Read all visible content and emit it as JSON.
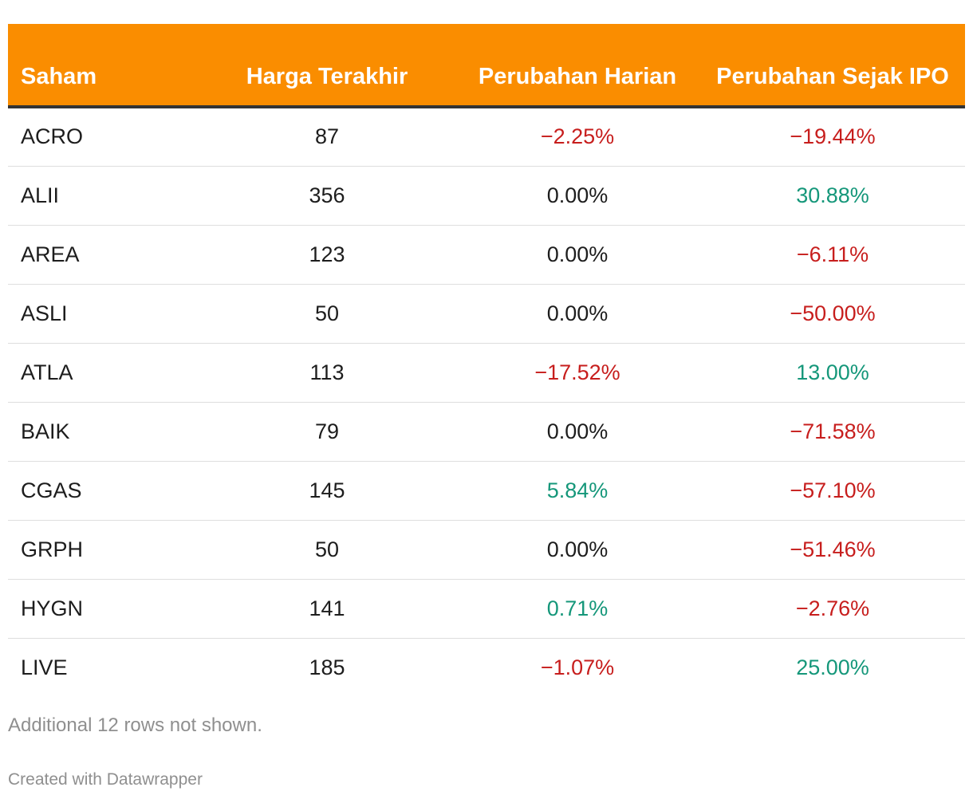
{
  "chart_data": {
    "type": "table",
    "columns": [
      "Saham",
      "Harga Terakhir",
      "Perubahan Harian",
      "Perubahan Sejak IPO"
    ],
    "rows": [
      {
        "saham": "ACRO",
        "harga": "87",
        "harian": "−2.25%",
        "ipo": "−19.44%",
        "harian_value": -2.25,
        "ipo_value": -19.44
      },
      {
        "saham": "ALII",
        "harga": "356",
        "harian": "0.00%",
        "ipo": "30.88%",
        "harian_value": 0.0,
        "ipo_value": 30.88
      },
      {
        "saham": "AREA",
        "harga": "123",
        "harian": "0.00%",
        "ipo": "−6.11%",
        "harian_value": 0.0,
        "ipo_value": -6.11
      },
      {
        "saham": "ASLI",
        "harga": "50",
        "harian": "0.00%",
        "ipo": "−50.00%",
        "harian_value": 0.0,
        "ipo_value": -50.0
      },
      {
        "saham": "ATLA",
        "harga": "113",
        "harian": "−17.52%",
        "ipo": "13.00%",
        "harian_value": -17.52,
        "ipo_value": 13.0
      },
      {
        "saham": "BAIK",
        "harga": "79",
        "harian": "0.00%",
        "ipo": "−71.58%",
        "harian_value": 0.0,
        "ipo_value": -71.58
      },
      {
        "saham": "CGAS",
        "harga": "145",
        "harian": "5.84%",
        "ipo": "−57.10%",
        "harian_value": 5.84,
        "ipo_value": -57.1
      },
      {
        "saham": "GRPH",
        "harga": "50",
        "harian": "0.00%",
        "ipo": "−51.46%",
        "harian_value": 0.0,
        "ipo_value": -51.46
      },
      {
        "saham": "HYGN",
        "harga": "141",
        "harian": "0.71%",
        "ipo": "−2.76%",
        "harian_value": 0.71,
        "ipo_value": -2.76
      },
      {
        "saham": "LIVE",
        "harga": "185",
        "harian": "−1.07%",
        "ipo": "25.00%",
        "harian_value": -1.07,
        "ipo_value": 25.0
      }
    ],
    "note": "Additional 12 rows not shown.",
    "credit": "Created with Datawrapper"
  },
  "colors": {
    "header_bg": "#fa8d00",
    "negative": "#c71e1d",
    "positive": "#15977a"
  }
}
